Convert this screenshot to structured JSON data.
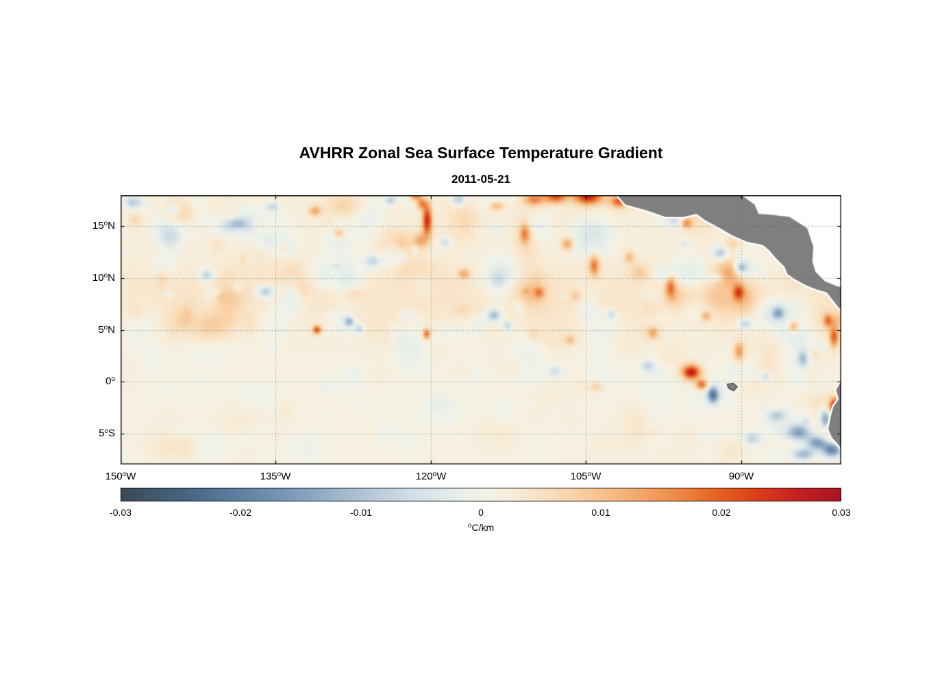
{
  "title": "AVHRR Zonal Sea Surface Temperature Gradient",
  "subtitle": "2011-05-21",
  "axes": {
    "xticks": [
      {
        "num": "150",
        "sup": "o",
        "dir": "W"
      },
      {
        "num": "135",
        "sup": "o",
        "dir": "W"
      },
      {
        "num": "120",
        "sup": "o",
        "dir": "W"
      },
      {
        "num": "105",
        "sup": "o",
        "dir": "W"
      },
      {
        "num": "90",
        "sup": "o",
        "dir": "W"
      }
    ],
    "yticks": [
      {
        "num": "15",
        "sup": "o",
        "dir": "N"
      },
      {
        "num": "10",
        "sup": "o",
        "dir": "N"
      },
      {
        "num": "5",
        "sup": "o",
        "dir": "N"
      },
      {
        "num": "0",
        "sup": "o",
        "dir": ""
      },
      {
        "num": "5",
        "sup": "o",
        "dir": "S"
      }
    ]
  },
  "colorbar": {
    "ticks": [
      "-0.03",
      "-0.02",
      "-0.01",
      "0",
      "0.01",
      "0.02",
      "0.03"
    ],
    "unit_sup": "o",
    "unit_text": "C/km"
  },
  "chart_data": {
    "type": "heatmap",
    "title": "AVHRR Zonal Sea Surface Temperature Gradient",
    "date": "2011-05-21",
    "units": "°C/km",
    "lon_range": [
      -150,
      -80.3
    ],
    "lat_range": [
      -8,
      18
    ],
    "value_range": [
      -0.03,
      0.03
    ],
    "lon_ticks": [
      -150,
      -135,
      -120,
      -105,
      -90
    ],
    "lat_ticks": [
      15,
      10,
      5,
      0,
      -5
    ],
    "lon_tick_labels": [
      "150°W",
      "135°W",
      "120°W",
      "105°W",
      "90°W"
    ],
    "lat_tick_labels": [
      "15°N",
      "10°N",
      "5°N",
      "0°",
      "5°S"
    ],
    "colorbar_tick_values": [
      -0.03,
      -0.02,
      -0.01,
      0,
      0.01,
      0.02,
      0.03
    ],
    "grid": true,
    "land_color": "#7f7f7f",
    "background": "#ffffff",
    "colormap": [
      {
        "pos": 0.0,
        "color": "#3b4a57"
      },
      {
        "pos": 0.08,
        "color": "#44617e"
      },
      {
        "pos": 0.16,
        "color": "#5b7fa3"
      },
      {
        "pos": 0.24,
        "color": "#7e9cbb"
      },
      {
        "pos": 0.32,
        "color": "#a7bdd2"
      },
      {
        "pos": 0.4,
        "color": "#cfdde6"
      },
      {
        "pos": 0.47,
        "color": "#e8eee9"
      },
      {
        "pos": 0.5,
        "color": "#f0f2ea"
      },
      {
        "pos": 0.53,
        "color": "#f7efdd"
      },
      {
        "pos": 0.6,
        "color": "#f9ddba"
      },
      {
        "pos": 0.68,
        "color": "#f6bc85"
      },
      {
        "pos": 0.76,
        "color": "#ef9250"
      },
      {
        "pos": 0.83,
        "color": "#e5611f"
      },
      {
        "pos": 0.89,
        "color": "#d93a1a"
      },
      {
        "pos": 0.94,
        "color": "#c62121"
      },
      {
        "pos": 1.0,
        "color": "#a81422"
      }
    ],
    "features": [
      [
        -120.35,
        15.6,
        0.45,
        1.5,
        0.024
      ],
      [
        -120.9,
        17.2,
        0.5,
        0.6,
        0.014
      ],
      [
        -121.0,
        13.6,
        0.7,
        0.7,
        0.01
      ],
      [
        -117.3,
        17.6,
        0.7,
        0.6,
        -0.012
      ],
      [
        -113.6,
        17.0,
        0.8,
        0.5,
        0.012
      ],
      [
        -110.0,
        17.6,
        1.0,
        0.6,
        0.014
      ],
      [
        -107.9,
        17.9,
        1.1,
        0.7,
        0.02
      ],
      [
        -104.8,
        17.9,
        1.4,
        0.8,
        0.024
      ],
      [
        -101.8,
        17.4,
        0.8,
        0.6,
        0.018
      ],
      [
        -99.6,
        17.8,
        0.9,
        0.5,
        0.016
      ],
      [
        -96.3,
        17.2,
        0.7,
        0.5,
        0.02
      ],
      [
        -95.3,
        15.3,
        0.6,
        0.5,
        0.014
      ],
      [
        -110.9,
        14.3,
        0.5,
        0.9,
        0.013
      ],
      [
        -106.8,
        13.3,
        0.6,
        0.6,
        0.012
      ],
      [
        -104.2,
        11.2,
        0.5,
        1.0,
        0.016
      ],
      [
        -100.8,
        12.0,
        0.5,
        0.6,
        0.009
      ],
      [
        -96.8,
        9.2,
        0.5,
        1.1,
        0.014
      ],
      [
        -92.0,
        12.4,
        0.7,
        0.6,
        -0.012
      ],
      [
        -90.0,
        11.0,
        0.6,
        0.5,
        -0.01
      ],
      [
        -90.3,
        8.6,
        0.5,
        0.8,
        0.012
      ],
      [
        -93.4,
        6.3,
        0.5,
        0.5,
        0.01
      ],
      [
        -89.6,
        5.6,
        0.6,
        0.5,
        -0.01
      ],
      [
        -86.4,
        6.6,
        0.6,
        0.6,
        -0.013
      ],
      [
        -84.9,
        5.3,
        0.5,
        0.5,
        0.012
      ],
      [
        -113.9,
        6.4,
        0.7,
        0.6,
        -0.014
      ],
      [
        -112.6,
        5.4,
        0.5,
        0.5,
        -0.009
      ],
      [
        -116.8,
        10.4,
        0.6,
        0.5,
        0.01
      ],
      [
        -127.9,
        5.8,
        0.5,
        0.5,
        -0.014
      ],
      [
        -126.9,
        5.1,
        0.4,
        0.4,
        -0.009
      ],
      [
        -131.0,
        5.0,
        0.4,
        0.4,
        0.02
      ],
      [
        -120.4,
        4.6,
        0.35,
        0.5,
        0.018
      ],
      [
        -125.6,
        11.6,
        0.8,
        0.6,
        -0.009
      ],
      [
        -128.9,
        14.3,
        0.6,
        0.5,
        0.01
      ],
      [
        -131.2,
        16.5,
        0.6,
        0.5,
        0.012
      ],
      [
        -134.3,
        12.9,
        0.5,
        0.5,
        0.009
      ],
      [
        -136.0,
        8.7,
        0.8,
        0.6,
        -0.012
      ],
      [
        -138.7,
        15.3,
        0.8,
        0.6,
        -0.01
      ],
      [
        -141.6,
        10.3,
        0.7,
        0.5,
        -0.008
      ],
      [
        -148.8,
        17.3,
        0.9,
        0.6,
        -0.011
      ],
      [
        -144.9,
        16.6,
        0.6,
        0.4,
        -0.007
      ],
      [
        -94.8,
        0.9,
        0.9,
        0.7,
        0.026
      ],
      [
        -93.8,
        -0.3,
        0.6,
        0.5,
        0.018
      ],
      [
        -92.7,
        -1.3,
        0.55,
        0.8,
        -0.022
      ],
      [
        -90.2,
        2.9,
        0.5,
        0.9,
        0.013
      ],
      [
        -87.6,
        0.5,
        0.5,
        0.5,
        -0.009
      ],
      [
        -84.0,
        2.2,
        0.5,
        0.8,
        -0.011
      ],
      [
        -81.0,
        4.3,
        0.45,
        1.0,
        0.018
      ],
      [
        -81.6,
        5.9,
        0.4,
        0.6,
        0.013
      ],
      [
        -80.9,
        -2.6,
        0.5,
        0.9,
        0.03
      ],
      [
        -81.8,
        -3.6,
        0.6,
        1.0,
        -0.02
      ],
      [
        -84.4,
        -4.9,
        1.2,
        0.8,
        -0.016
      ],
      [
        -82.6,
        -5.9,
        1.0,
        0.7,
        -0.019
      ],
      [
        -86.6,
        -3.3,
        0.9,
        0.6,
        -0.01
      ],
      [
        -81.2,
        -6.6,
        0.9,
        0.7,
        -0.022
      ],
      [
        -84.0,
        -7.0,
        1.1,
        0.6,
        -0.014
      ],
      [
        -88.9,
        -5.5,
        0.8,
        0.6,
        -0.009
      ],
      [
        -121.5,
        17.9,
        0.6,
        0.4,
        0.016
      ],
      [
        -123.9,
        17.5,
        0.5,
        0.4,
        -0.01
      ],
      [
        -135.3,
        16.9,
        0.6,
        0.4,
        -0.008
      ],
      [
        -109.5,
        8.6,
        0.5,
        0.5,
        0.009
      ],
      [
        -118.6,
        13.5,
        0.6,
        0.5,
        -0.008
      ],
      [
        -98.5,
        4.7,
        0.5,
        0.6,
        0.009
      ],
      [
        -102.5,
        6.5,
        0.5,
        0.5,
        -0.008
      ],
      [
        -106.5,
        4.0,
        0.5,
        0.5,
        0.008
      ],
      [
        -99.0,
        1.5,
        0.6,
        0.5,
        -0.008
      ],
      [
        -104.0,
        -0.5,
        0.7,
        0.5,
        0.007
      ],
      [
        -108.0,
        1.0,
        0.6,
        0.5,
        -0.007
      ]
    ],
    "noise": {
      "seed": 11,
      "count": 330,
      "amp": 0.0065
    },
    "land": {
      "white_mask": [
        [
          -102.3,
          18.7
        ],
        [
          -102.3,
          18.4
        ],
        [
          -101.2,
          17.1
        ],
        [
          -99.0,
          16.5
        ],
        [
          -97.3,
          15.9
        ],
        [
          -95.6,
          15.9
        ],
        [
          -94.3,
          16.2
        ],
        [
          -93.5,
          15.6
        ],
        [
          -92.2,
          14.9
        ],
        [
          -90.8,
          14.1
        ],
        [
          -89.4,
          13.5
        ],
        [
          -87.9,
          13.2
        ],
        [
          -87.3,
          12.7
        ],
        [
          -86.6,
          11.9
        ],
        [
          -85.8,
          11.1
        ],
        [
          -85.5,
          10.4
        ],
        [
          -84.8,
          9.9
        ],
        [
          -83.7,
          9.3
        ],
        [
          -82.7,
          8.9
        ],
        [
          -81.7,
          8.6
        ],
        [
          -80.6,
          7.2
        ],
        [
          -79.8,
          6.5
        ],
        [
          -78.6,
          6.5
        ],
        [
          -78.6,
          18.7
        ]
      ],
      "mainland": [
        [
          -102.3,
          18.4
        ],
        [
          -101.2,
          17.1
        ],
        [
          -99.0,
          16.5
        ],
        [
          -97.3,
          15.9
        ],
        [
          -95.6,
          15.9
        ],
        [
          -94.3,
          16.2
        ],
        [
          -93.5,
          15.6
        ],
        [
          -92.2,
          14.9
        ],
        [
          -90.8,
          14.1
        ],
        [
          -89.4,
          13.5
        ],
        [
          -87.9,
          13.2
        ],
        [
          -87.3,
          12.7
        ],
        [
          -86.6,
          11.9
        ],
        [
          -85.8,
          11.1
        ],
        [
          -85.5,
          10.4
        ],
        [
          -84.8,
          9.9
        ],
        [
          -83.7,
          9.3
        ],
        [
          -82.7,
          8.9
        ],
        [
          -81.7,
          8.6
        ],
        [
          -80.6,
          7.2
        ],
        [
          -79.8,
          6.5
        ],
        [
          -79.4,
          9.0
        ],
        [
          -80.7,
          9.2
        ],
        [
          -81.9,
          9.7
        ],
        [
          -82.8,
          10.6
        ],
        [
          -83.1,
          11.6
        ],
        [
          -83.0,
          13.0
        ],
        [
          -83.6,
          14.8
        ],
        [
          -85.3,
          15.9
        ],
        [
          -86.9,
          16.1
        ],
        [
          -88.3,
          16.2
        ],
        [
          -88.7,
          17.1
        ],
        [
          -89.8,
          17.9
        ],
        [
          -90.3,
          18.4
        ]
      ],
      "south_america": [
        [
          -79.7,
          0.9
        ],
        [
          -80.25,
          0.15
        ],
        [
          -80.8,
          -0.8
        ],
        [
          -80.55,
          -1.7
        ],
        [
          -81.05,
          -2.4
        ],
        [
          -81.3,
          -3.3
        ],
        [
          -81.55,
          -4.6
        ],
        [
          -81.2,
          -5.4
        ],
        [
          -80.5,
          -6.2
        ],
        [
          -80.0,
          -7.0
        ],
        [
          -79.7,
          -8.6
        ],
        [
          -78.8,
          -8.6
        ],
        [
          -78.8,
          0.9
        ]
      ],
      "galapagos": [
        [
          -91.35,
          -0.25
        ],
        [
          -90.75,
          -0.15
        ],
        [
          -90.35,
          -0.5
        ],
        [
          -90.7,
          -0.9
        ],
        [
          -91.2,
          -0.65
        ]
      ]
    }
  }
}
